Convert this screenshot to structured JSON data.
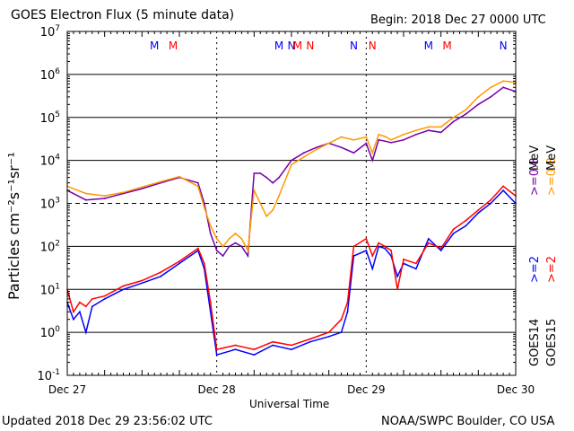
{
  "header": {
    "title": "GOES Electron Flux (5 minute data)",
    "begin": "Begin: 2018 Dec 27 0000 UTC"
  },
  "footer": {
    "updated": "Updated 2018 Dec 29 23:56:02 UTC",
    "source": "NOAA/SWPC Boulder, CO USA"
  },
  "chart_data": {
    "type": "line",
    "title": "GOES Electron Flux (5 minute data)",
    "xlabel": "Universal Time",
    "ylabel": "Particles cm⁻²s⁻¹sr⁻¹",
    "y_scale": "log",
    "ylim": [
      0.1,
      10000000
    ],
    "xlim": [
      "2018-12-27 00:00",
      "2018-12-30 00:00"
    ],
    "x_ticks": [
      "Dec 27",
      "Dec 28",
      "Dec 29",
      "Dec 30"
    ],
    "y_ticks": [
      {
        "base": "10",
        "exp": "7"
      },
      {
        "base": "10",
        "exp": "6"
      },
      {
        "base": "10",
        "exp": "5"
      },
      {
        "base": "10",
        "exp": "4"
      },
      {
        "base": "10",
        "exp": "3"
      },
      {
        "base": "10",
        "exp": "2"
      },
      {
        "base": "10",
        "exp": "1"
      },
      {
        "base": "10",
        "exp": "0"
      },
      {
        "base": "10",
        "exp": "-1"
      }
    ],
    "grid": true,
    "threshold_line": 1000,
    "markers": [
      {
        "label": "M",
        "color": "#0000ff",
        "x": "2018-12-27 14:00"
      },
      {
        "label": "M",
        "color": "#ff0000",
        "x": "2018-12-27 17:00"
      },
      {
        "label": "N",
        "color": "#0000ff",
        "x": "2018-12-28 12:00"
      },
      {
        "label": "N",
        "color": "#ff0000",
        "x": "2018-12-28 15:00"
      },
      {
        "label": "M",
        "color": "#0000ff",
        "x": "2018-12-28 10:00"
      },
      {
        "label": "M",
        "color": "#ff0000",
        "x": "2018-12-28 13:00"
      },
      {
        "label": "N",
        "color": "#0000ff",
        "x": "2018-12-28 22:00"
      },
      {
        "label": "N",
        "color": "#ff0000",
        "x": "2018-12-29 01:00"
      },
      {
        "label": "M",
        "color": "#0000ff",
        "x": "2018-12-29 10:00"
      },
      {
        "label": "M",
        "color": "#ff0000",
        "x": "2018-12-29 13:00"
      },
      {
        "label": "N",
        "color": "#0000ff",
        "x": "2018-12-29 22:00"
      },
      {
        "label": "N",
        "color": "#ff0000",
        "x": "2018-12-30 01:00"
      }
    ],
    "series": [
      {
        "name": "GOES14 >=0.8 MeV",
        "color": "#7700aa",
        "x_hours": [
          0,
          3,
          6,
          9,
          12,
          15,
          18,
          21,
          22,
          23,
          24,
          25,
          26,
          27,
          28,
          29,
          30,
          31,
          32,
          33,
          34,
          36,
          38,
          40,
          42,
          44,
          46,
          48,
          49,
          50,
          51,
          52,
          54,
          56,
          58,
          60,
          62,
          64,
          66,
          68,
          70,
          72
        ],
        "values": [
          2000,
          1200,
          1300,
          1700,
          2200,
          3000,
          4000,
          3000,
          1000,
          200,
          80,
          60,
          100,
          120,
          100,
          60,
          5000,
          5000,
          4000,
          3000,
          4000,
          10000,
          15000,
          20000,
          25000,
          20000,
          15000,
          25000,
          10000,
          30000,
          28000,
          26000,
          30000,
          40000,
          50000,
          45000,
          80000,
          120000,
          200000,
          300000,
          500000,
          400000
        ]
      },
      {
        "name": "GOES15 >=0.8 MeV",
        "color": "#ff9900",
        "x_hours": [
          0,
          3,
          6,
          9,
          12,
          15,
          18,
          21,
          22,
          23,
          24,
          25,
          26,
          27,
          28,
          29,
          30,
          31,
          32,
          33,
          34,
          36,
          38,
          40,
          42,
          44,
          46,
          48,
          49,
          50,
          51,
          52,
          54,
          56,
          58,
          60,
          62,
          64,
          66,
          68,
          70,
          72
        ],
        "values": [
          2500,
          1700,
          1500,
          1800,
          2400,
          3200,
          4200,
          2500,
          800,
          300,
          150,
          100,
          150,
          200,
          150,
          80,
          2000,
          1000,
          500,
          700,
          1500,
          8000,
          12000,
          18000,
          25000,
          35000,
          30000,
          35000,
          15000,
          40000,
          36000,
          30000,
          40000,
          50000,
          60000,
          60000,
          100000,
          150000,
          300000,
          500000,
          700000,
          650000
        ]
      },
      {
        "name": "GOES14 >=2 MeV",
        "color": "#0000ff",
        "x_hours": [
          0,
          1,
          2,
          3,
          4,
          6,
          9,
          12,
          15,
          18,
          21,
          22,
          23,
          24,
          27,
          30,
          33,
          36,
          39,
          42,
          44,
          45,
          46,
          48,
          49,
          50,
          51,
          52,
          53,
          54,
          56,
          58,
          60,
          62,
          64,
          66,
          68,
          70,
          72
        ],
        "values": [
          5,
          2,
          3,
          1,
          4,
          6,
          10,
          14,
          20,
          40,
          80,
          30,
          3,
          0.3,
          0.4,
          0.3,
          0.5,
          0.4,
          0.6,
          0.8,
          1,
          3,
          60,
          80,
          30,
          100,
          90,
          60,
          20,
          40,
          30,
          150,
          80,
          200,
          300,
          600,
          1000,
          2000,
          1000
        ]
      },
      {
        "name": "GOES15 >=2 MeV",
        "color": "#ff0000",
        "x_hours": [
          0,
          1,
          2,
          3,
          4,
          6,
          9,
          12,
          15,
          18,
          21,
          22,
          23,
          24,
          27,
          30,
          33,
          36,
          39,
          42,
          44,
          45,
          46,
          48,
          49,
          50,
          51,
          52,
          53,
          54,
          56,
          58,
          60,
          62,
          64,
          66,
          68,
          70,
          72
        ],
        "values": [
          10,
          3,
          5,
          4,
          6,
          7,
          12,
          16,
          25,
          45,
          90,
          40,
          5,
          0.4,
          0.5,
          0.4,
          0.6,
          0.5,
          0.7,
          1,
          2,
          5,
          100,
          150,
          60,
          120,
          100,
          80,
          10,
          50,
          40,
          120,
          90,
          250,
          400,
          700,
          1200,
          2500,
          1500
        ]
      }
    ],
    "right_labels": {
      "g14_low": ">=0.8",
      "g14_high": ">=2",
      "g15_low": ">=0.8",
      "g15_high": ">=2",
      "mev_top": "MeV",
      "mev_bottom": "MeV",
      "goes14": "GOES14",
      "goes15": "GOES15"
    }
  }
}
